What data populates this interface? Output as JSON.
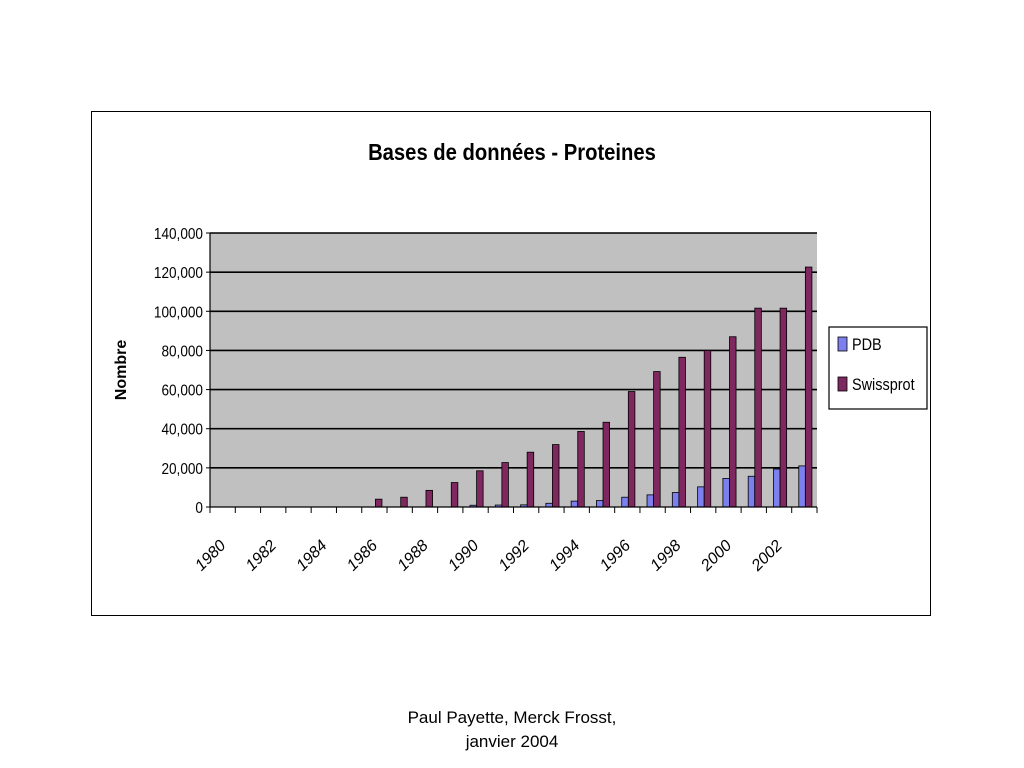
{
  "caption": {
    "line1": "Paul Payette, Merck Frosst,",
    "line2": "janvier 2004"
  },
  "chart_data": {
    "type": "bar",
    "title": "Bases de données - Proteines",
    "xlabel": "",
    "ylabel": "Nombre",
    "ylim": [
      0,
      140000
    ],
    "yticks": [
      0,
      20000,
      40000,
      60000,
      80000,
      100000,
      120000,
      140000
    ],
    "ytick_labels": [
      "0",
      "20,000",
      "40,000",
      "60,000",
      "80,000",
      "100,000",
      "120,000",
      "140,000"
    ],
    "categories": [
      "1980",
      "1981",
      "1982",
      "1983",
      "1984",
      "1985",
      "1986",
      "1987",
      "1988",
      "1989",
      "1990",
      "1991",
      "1992",
      "1993",
      "1994",
      "1995",
      "1996",
      "1997",
      "1998",
      "1999",
      "2000",
      "2001",
      "2002",
      "2003"
    ],
    "xtick_labels": [
      "1980",
      "",
      "1982",
      "",
      "1984",
      "",
      "1986",
      "",
      "1988",
      "",
      "1990",
      "",
      "1992",
      "",
      "1994",
      "",
      "1996",
      "",
      "1998",
      "",
      "2000",
      "",
      "2002",
      ""
    ],
    "series": [
      {
        "name": "PDB",
        "color": "#7b80ee",
        "values": [
          0,
          0,
          0,
          0,
          0,
          0,
          0,
          0,
          0,
          0,
          900,
          1000,
          1100,
          1900,
          3000,
          3300,
          5000,
          6200,
          7400,
          10300,
          14600,
          15700,
          19400,
          21000
        ]
      },
      {
        "name": "Swissprot",
        "color": "#7f2860",
        "values": [
          0,
          0,
          0,
          0,
          0,
          0,
          4000,
          5000,
          8500,
          12500,
          18500,
          22700,
          28000,
          31900,
          38600,
          43300,
          59000,
          69200,
          76500,
          80000,
          87000,
          101600,
          101600,
          122600
        ]
      }
    ],
    "grid": true,
    "plot_background": "#c0c0c0",
    "legend_position": "right"
  }
}
